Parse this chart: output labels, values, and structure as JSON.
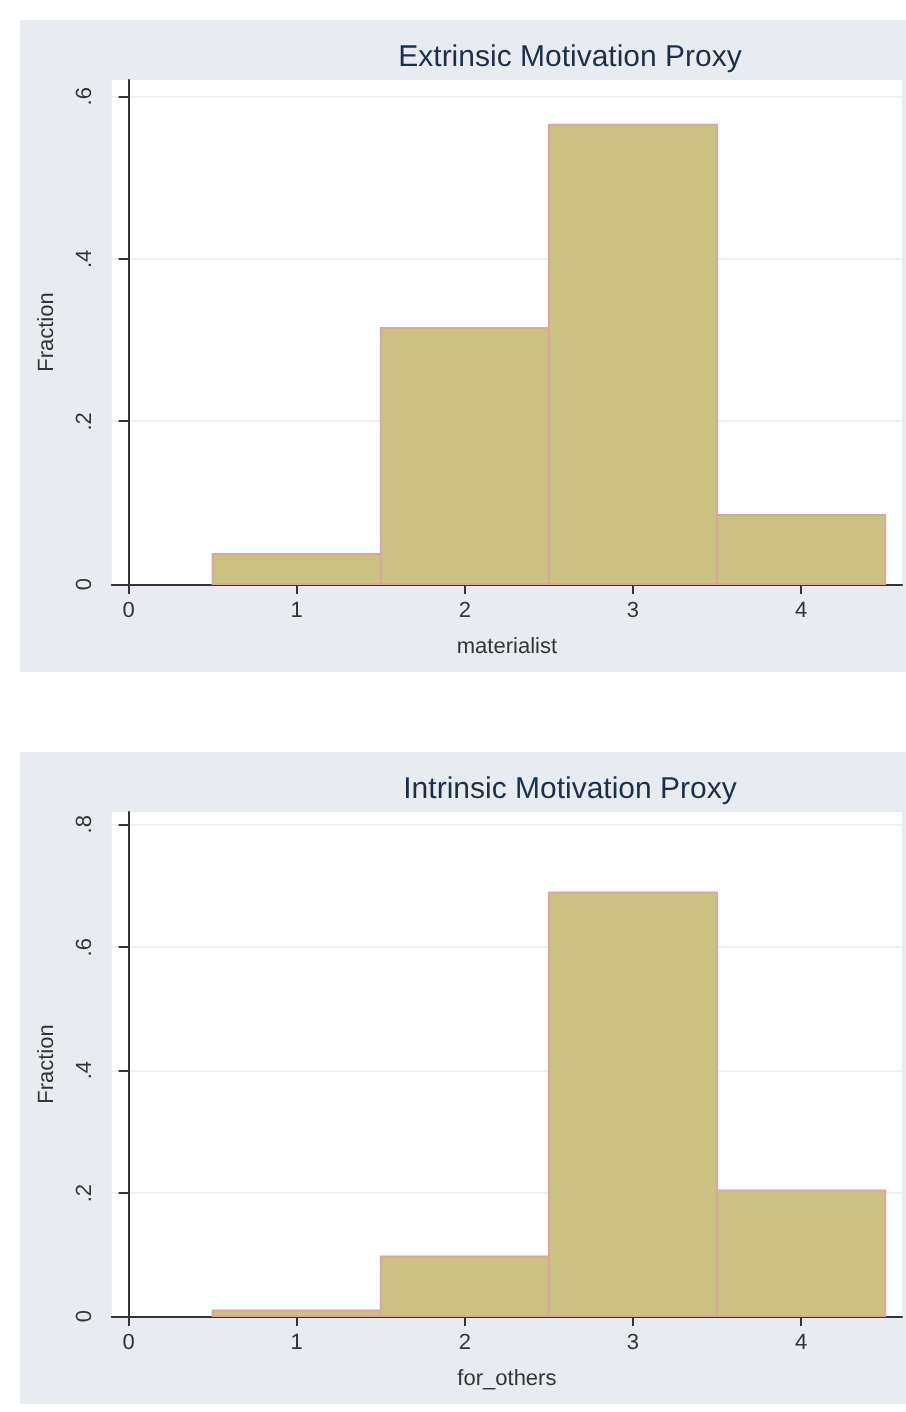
{
  "chart_data": [
    {
      "type": "histogram",
      "title": "Extrinsic Motivation Proxy",
      "xlabel": "materialist",
      "ylabel": "Fraction",
      "bins": [
        0.5,
        1.5,
        2.5,
        3.5,
        4.5
      ],
      "values": [
        0.037,
        0.315,
        0.565,
        0.085
      ],
      "color": "#cbc182",
      "xlim": [
        -0.1,
        4.6
      ],
      "xticks": [
        0,
        1,
        2,
        3,
        4
      ],
      "ylim": [
        0,
        0.62
      ],
      "yticks": [
        0,
        {
          "value": 0.2,
          "label": ".2"
        },
        {
          "value": 0.4,
          "label": ".4"
        },
        {
          "value": 0.6,
          "label": ".6"
        }
      ],
      "grid": "y"
    },
    {
      "type": "histogram",
      "title": "Intrinsic Motivation Proxy",
      "xlabel": "for_others",
      "ylabel": "Fraction",
      "bins": [
        0.5,
        1.5,
        2.5,
        3.5,
        4.5
      ],
      "values": [
        0.009,
        0.097,
        0.689,
        0.204
      ],
      "color": "#cbc182",
      "xlim": [
        -0.1,
        4.6
      ],
      "xticks": [
        0,
        1,
        2,
        3,
        4
      ],
      "ylim": [
        0,
        0.82
      ],
      "yticks": [
        0,
        {
          "value": 0.2,
          "label": ".2"
        },
        {
          "value": 0.4,
          "label": ".4"
        },
        {
          "value": 0.6,
          "label": ".6"
        },
        {
          "value": 0.8,
          "label": ".8"
        }
      ],
      "grid": "y"
    }
  ]
}
